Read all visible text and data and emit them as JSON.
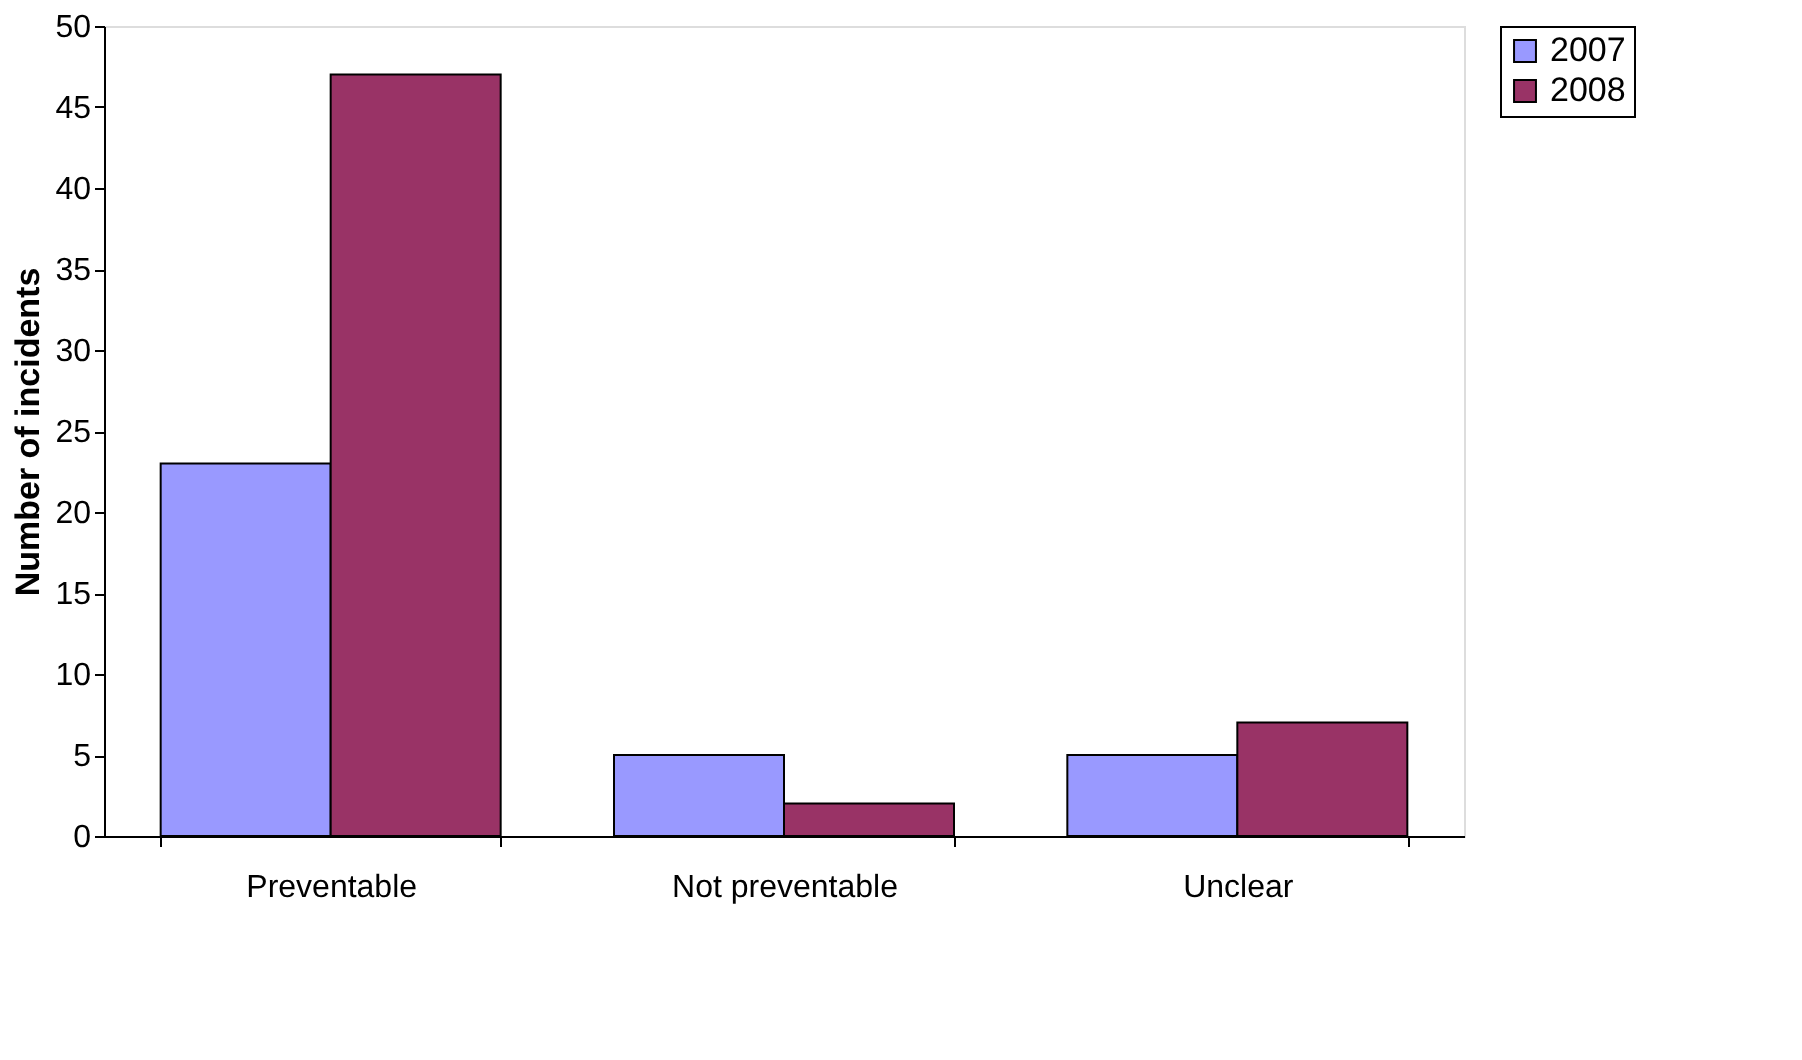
{
  "chart_data": {
    "type": "bar",
    "ylabel": "Number of incidents",
    "categories": [
      "Preventable",
      "Not preventable",
      "Unclear"
    ],
    "series": [
      {
        "name": "2007",
        "color": "#9999ff",
        "values": [
          23,
          5,
          5
        ]
      },
      {
        "name": "2008",
        "color": "#993366",
        "values": [
          47,
          2,
          7
        ]
      }
    ],
    "ylim": [
      0,
      50
    ],
    "yticks": [
      0,
      5,
      10,
      15,
      20,
      25,
      30,
      35,
      40,
      45,
      50
    ],
    "grid": false,
    "legend": "right"
  }
}
